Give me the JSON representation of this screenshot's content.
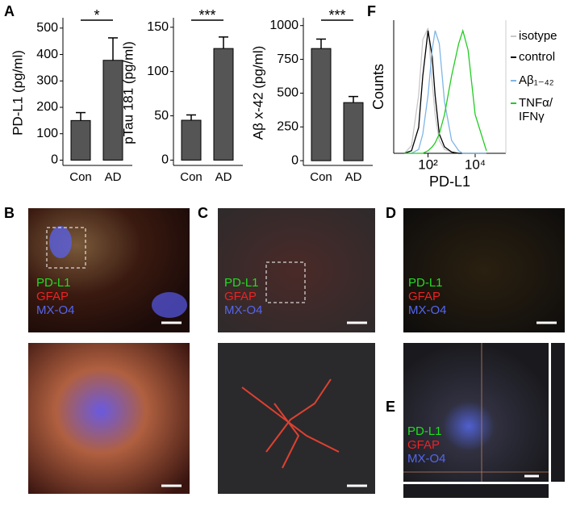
{
  "panel_labels": [
    "A",
    "B",
    "C",
    "D",
    "E",
    "F"
  ],
  "image_legend": [
    "PD-L1",
    "GFAP",
    "MX-O4"
  ],
  "chart_data": [
    {
      "type": "bar",
      "ylabel": "PD-L1 (pg/ml)",
      "categories": [
        "Con",
        "AD"
      ],
      "values": [
        150,
        378
      ],
      "errors": [
        30,
        85
      ],
      "color": "#555555",
      "ylim": [
        -20,
        530
      ],
      "yticks": [
        0,
        100,
        200,
        300,
        400,
        500
      ],
      "significance": "*"
    },
    {
      "type": "bar",
      "ylabel": "pTau 181 (pg/ml)",
      "categories": [
        "Con",
        "AD"
      ],
      "values": [
        45,
        126
      ],
      "errors": [
        6,
        13
      ],
      "color": "#555555",
      "ylim": [
        -6,
        158
      ],
      "yticks": [
        0,
        50,
        100,
        150
      ],
      "significance": "***"
    },
    {
      "type": "bar",
      "ylabel": "Aβ x-42 (pg/ml)",
      "categories": [
        "Con",
        "AD"
      ],
      "values": [
        830,
        430
      ],
      "errors": [
        70,
        45
      ],
      "color": "#555555",
      "ylim": [
        -35,
        1040
      ],
      "yticks": [
        0,
        250,
        500,
        750,
        1000
      ],
      "significance": "***"
    },
    {
      "type": "line",
      "xlabel": "PD-L1",
      "ylabel": "Counts",
      "log_x": true,
      "x": [
        10,
        20,
        40,
        60,
        100,
        150,
        200,
        300,
        500,
        1000,
        2000,
        3000,
        5000,
        10000,
        30000
      ],
      "xlim": [
        3.5,
        200000
      ],
      "ylim": [
        0,
        100
      ],
      "xticks": [
        {
          "value": 100,
          "label": "10²"
        },
        {
          "value": 10000,
          "label": "10⁴"
        }
      ],
      "series": [
        {
          "name": "isotype",
          "color": "#c8c8c8",
          "values": [
            0,
            6,
            45,
            88,
            97,
            55,
            30,
            10,
            3,
            1,
            0,
            0,
            0,
            0,
            0
          ]
        },
        {
          "name": "control",
          "color": "#000000",
          "values": [
            0,
            2,
            20,
            60,
            95,
            75,
            45,
            15,
            5,
            1,
            0,
            0,
            0,
            0,
            0
          ]
        },
        {
          "name": "Aβ₁₋₄₂",
          "color": "#7fb6e6",
          "values": [
            0,
            0,
            3,
            15,
            45,
            80,
            95,
            85,
            40,
            10,
            2,
            0,
            0,
            0,
            0
          ]
        },
        {
          "name": "TNFα/ IFNγ",
          "color": "#22cc22",
          "values": [
            0,
            0,
            0,
            0,
            2,
            5,
            8,
            15,
            30,
            60,
            85,
            95,
            80,
            30,
            2
          ]
        }
      ]
    }
  ]
}
